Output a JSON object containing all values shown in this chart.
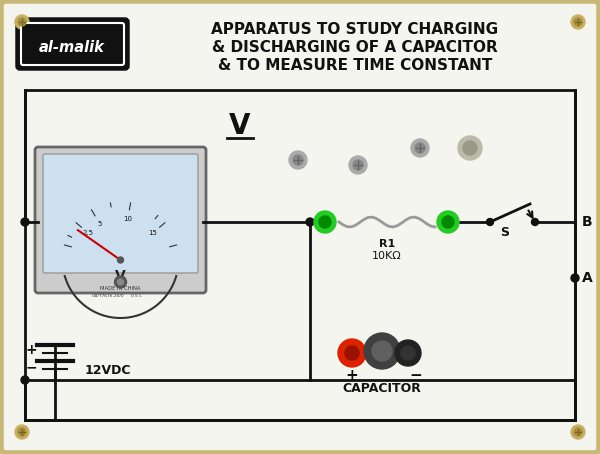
{
  "bg_color": "#d8d0b8",
  "panel_color": "#f5f5f0",
  "panel_edge_color": "#c8b878",
  "wire_color": "#111111",
  "title_line1": "APPARATUS TO STUDY CHARGING",
  "title_line2": "& DISCHARGING OF A CAPACITOR",
  "title_line3": "& TO MEASURE TIME CONSTANT",
  "brand": "al-malik",
  "voltage_label": "12VDC",
  "voltmeter_label": "V",
  "resistor_label": "R1",
  "resistor_value": "10KΩ",
  "capacitor_label": "CAPACITOR",
  "point_B": "B",
  "point_A": "A",
  "point_S": "S",
  "voltmeter_bg": "#cce0f0",
  "voltmeter_case": "#cccccc",
  "green_terminal": "#22cc22",
  "green_inner": "#008800",
  "red_terminal": "#dd2200",
  "red_inner": "#991100",
  "cap_body_color": "#404040",
  "cap_body_inner": "#606060",
  "cap_neg_color": "#222222",
  "screw_color": "#aaaaaa",
  "screw_inner": "#888888",
  "switch_knob_color": "#bbbbaa",
  "corner_screw_color": "#c8b060",
  "corner_screw_inner": "#a89040"
}
